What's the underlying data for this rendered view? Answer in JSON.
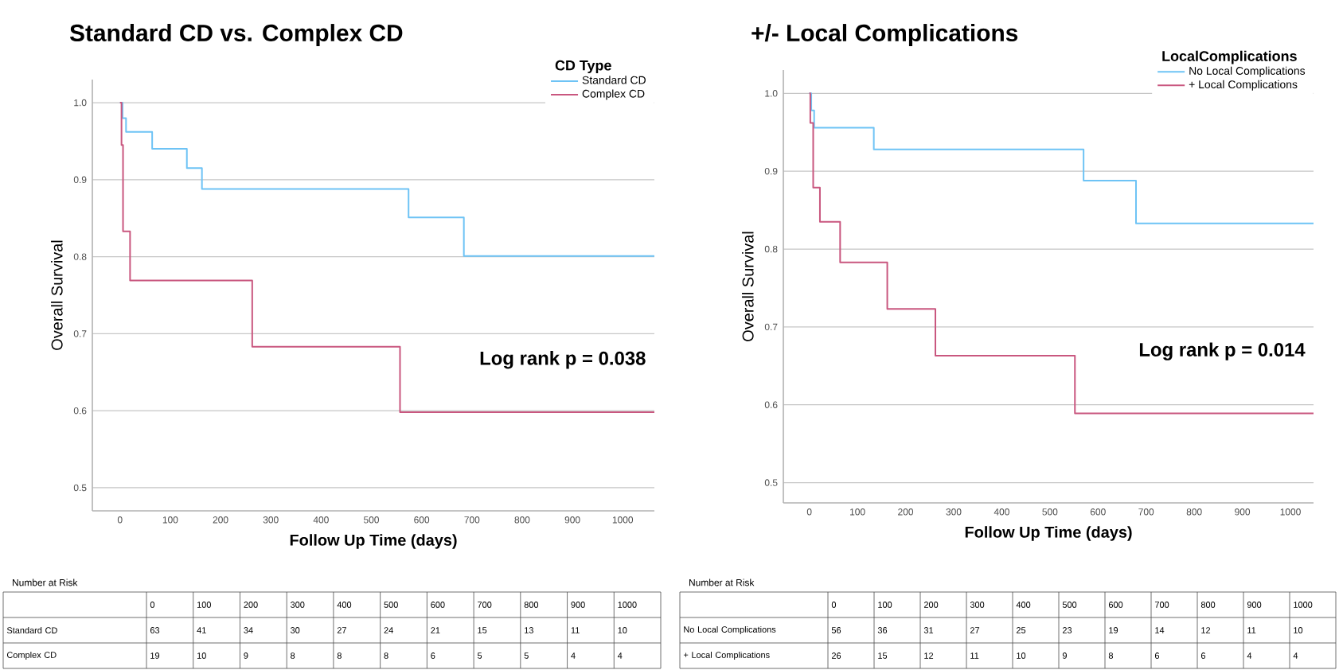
{
  "chart_data": [
    {
      "type": "step",
      "title": "Standard CD vs. Complex CD",
      "xlabel": "Follow Up Time (days)",
      "ylabel": "Overall Survival",
      "legend_title": "CD Type",
      "legend": "top right",
      "grid": "y",
      "marker": "none",
      "xlim": [
        -55,
        1063
      ],
      "ylim": [
        0.47,
        1.03
      ],
      "xticks": [
        0,
        100,
        200,
        300,
        400,
        500,
        600,
        700,
        800,
        900,
        1000
      ],
      "yticks": [
        0.5,
        0.6,
        0.7,
        0.8,
        0.9,
        {
          "value": 1,
          "label": "1.0"
        }
      ],
      "series": [
        {
          "name": "Standard CD",
          "color": "#6ec3f5",
          "x": [
            0,
            5,
            12,
            64,
            133,
            163,
            574,
            684,
            1063
          ],
          "values": [
            1,
            0.98,
            0.962,
            0.94,
            0.915,
            0.888,
            0.851,
            0.801,
            0.801
          ]
        },
        {
          "name": "Complex CD",
          "color": "#c9577f",
          "x": [
            0,
            3,
            6,
            20,
            263,
            557,
            1063
          ],
          "values": [
            1,
            0.945,
            0.833,
            0.769,
            0.683,
            0.598,
            0.598
          ]
        }
      ],
      "annotations": [
        "Log rank p = 0.038",
        "Number at Risk",
        "0",
        "100",
        "200",
        "300",
        "400",
        "500",
        "600",
        "700",
        "800",
        "900",
        "1000",
        "Standard CD",
        "63",
        "41",
        "34",
        "30",
        "27",
        "24",
        "21",
        "15",
        "13",
        "11",
        "10",
        "Complex CD",
        "19",
        "10",
        "9",
        "8",
        "8",
        "8",
        "6",
        "5",
        "5",
        "4",
        "4"
      ]
    },
    {
      "type": "step",
      "title": "+/- Local Complications",
      "xlabel": "Follow Up Time (days)",
      "ylabel": "Overall Survival",
      "legend_title": "LocalComplications",
      "legend": "top right",
      "grid": "y",
      "marker": "none",
      "xlim": [
        -54,
        1048
      ],
      "ylim": [
        0.474,
        1.03
      ],
      "xticks": [
        0,
        100,
        200,
        300,
        400,
        500,
        600,
        700,
        800,
        900,
        1000
      ],
      "yticks": [
        0.5,
        0.6,
        0.7,
        0.8,
        0.9,
        {
          "value": 1,
          "label": "1.0"
        }
      ],
      "series": [
        {
          "name": "No Local Complications",
          "color": "#6ec3f5",
          "x": [
            0,
            4,
            10,
            134,
            570,
            679,
            1048
          ],
          "values": [
            1,
            0.978,
            0.956,
            0.928,
            0.888,
            0.833,
            0.833
          ]
        },
        {
          "name": "+ Local Complications",
          "color": "#c9577f",
          "x": [
            0,
            2,
            8,
            22,
            64,
            162,
            262,
            552,
            1048
          ],
          "values": [
            1,
            0.962,
            0.879,
            0.835,
            0.783,
            0.723,
            0.663,
            0.589,
            0.589
          ]
        }
      ],
      "annotations": [
        "Log rank p = 0.014",
        "Number at Risk",
        "0",
        "100",
        "200",
        "300",
        "400",
        "500",
        "600",
        "700",
        "800",
        "900",
        "1000",
        "No Local Complications",
        "56",
        "36",
        "31",
        "27",
        "25",
        "23",
        "19",
        "14",
        "12",
        "11",
        "10",
        "+ Local Complications",
        "26",
        "15",
        "12",
        "11",
        "10",
        "9",
        "8",
        "6",
        "6",
        "4",
        "4"
      ]
    }
  ]
}
